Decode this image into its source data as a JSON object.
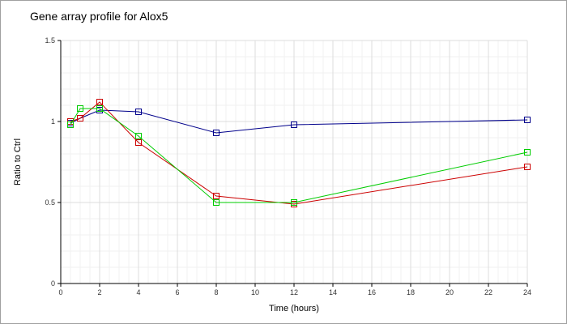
{
  "chart_data": {
    "type": "line",
    "title": "Gene array profile for Alox5",
    "xlabel": "Time (hours)",
    "ylabel": "Ratio to Ctrl",
    "xlim": [
      0,
      24
    ],
    "ylim": [
      0,
      1.5
    ],
    "x_ticks": [
      "0",
      "2",
      "4",
      "6",
      "8",
      "10",
      "12",
      "14",
      "16",
      "18",
      "20",
      "22",
      "24"
    ],
    "y_ticks": [
      "0",
      "0.5",
      "1",
      "1.5"
    ],
    "grid": true,
    "legend": "none",
    "marker": "square",
    "series": [
      {
        "color": "#00008b",
        "x": [
          0.5,
          1,
          2,
          4,
          8,
          12,
          24
        ],
        "y": [
          0.99,
          1.02,
          1.07,
          1.06,
          0.93,
          0.98,
          1.01
        ]
      },
      {
        "color": "#cc0000",
        "x": [
          0.5,
          1,
          2,
          4,
          8,
          12,
          24
        ],
        "y": [
          1.0,
          1.02,
          1.12,
          0.87,
          0.54,
          0.49,
          0.72
        ]
      },
      {
        "color": "#00cc00",
        "x": [
          0.5,
          1,
          2,
          4,
          8,
          12,
          24
        ],
        "y": [
          0.98,
          1.08,
          1.08,
          0.91,
          0.5,
          0.5,
          0.81
        ]
      }
    ]
  }
}
